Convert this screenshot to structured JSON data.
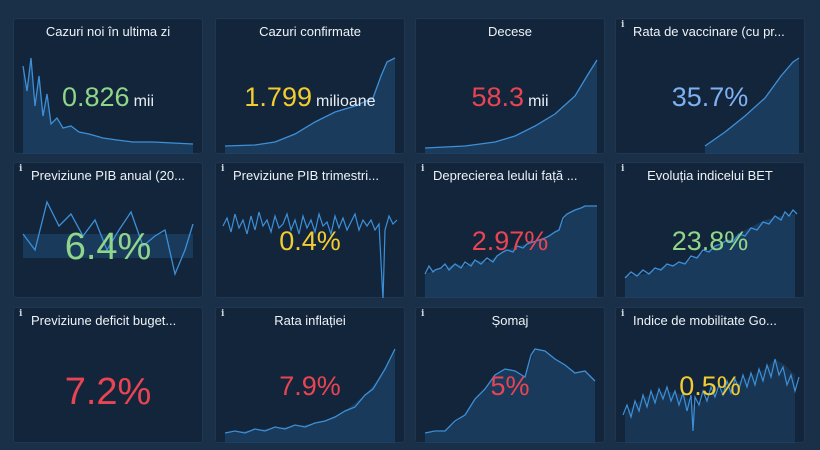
{
  "cards": [
    {
      "title": "Cazuri noi în ultima zi",
      "value": "0.826",
      "unit": "mii",
      "color": "#8fd68a",
      "info": false
    },
    {
      "title": "Cazuri confirmate",
      "value": "1.799",
      "unit": "milioane",
      "color": "#f2cc31",
      "info": false
    },
    {
      "title": "Decese",
      "value": "58.3",
      "unit": "mii",
      "color": "#e84453",
      "info": false
    },
    {
      "title": "Rata de vaccinare (cu pr...",
      "value": "35.7%",
      "unit": "",
      "color": "#7fb1f2",
      "info": true
    },
    {
      "title": "Previziune PIB anual (20...",
      "value": "6.4%",
      "unit": "",
      "color": "#8fd68a",
      "info": true
    },
    {
      "title": "Previziune PIB trimestri...",
      "value": "0.4%",
      "unit": "",
      "color": "#f2cc31",
      "info": true
    },
    {
      "title": "Deprecierea leului față ...",
      "value": "2.97%",
      "unit": "",
      "color": "#e84453",
      "info": true
    },
    {
      "title": "Evoluția indicelui BET",
      "value": "23.8%",
      "unit": "",
      "color": "#8fd68a",
      "info": true
    },
    {
      "title": "Previziune deficit buget...",
      "value": "7.2%",
      "unit": "",
      "color": "#e84453",
      "info": true
    },
    {
      "title": "Rata inflației",
      "value": "7.9%",
      "unit": "",
      "color": "#e84453",
      "info": true
    },
    {
      "title": "Șomaj",
      "value": "5%",
      "unit": "",
      "color": "#e84453",
      "info": true
    },
    {
      "title": "Indice de mobilitate Go...",
      "value": "0.5%",
      "unit": "",
      "color": "#f2cc31",
      "info": true
    }
  ],
  "info_glyph": "i",
  "sparkline_color": "#3d8fd8"
}
